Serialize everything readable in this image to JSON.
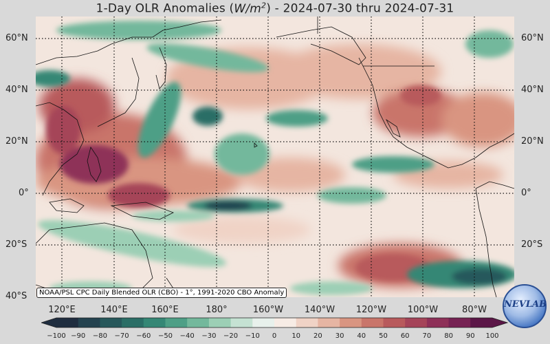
{
  "title": {
    "prefix": "1-Day OLR Anomalies (",
    "unit_main": "W/m",
    "unit_exp": "2",
    "suffix": ") - 2024-07-30 thru 2024-07-31"
  },
  "lat_labels": [
    "60°N",
    "40°N",
    "20°N",
    "0°",
    "20°S",
    "40°S"
  ],
  "lon_labels": [
    "120°E",
    "140°E",
    "160°E",
    "180°",
    "160°W",
    "140°W",
    "120°W",
    "100°W",
    "80°W"
  ],
  "footnote": "NOAA/PSL CPC Daily Blended OLR (CBO) - 1°, 1991-2020 CBO Anomaly",
  "colorbar": {
    "ticks": [
      "−100",
      "−90",
      "−80",
      "−70",
      "−60",
      "−50",
      "−40",
      "−30",
      "−20",
      "−10",
      "0",
      "10",
      "20",
      "30",
      "40",
      "50",
      "60",
      "70",
      "80",
      "90",
      "100"
    ],
    "colors": [
      "#1f2d3f",
      "#24424f",
      "#27585b",
      "#2b6e66",
      "#358775",
      "#4e9f86",
      "#73b89c",
      "#9ccfb5",
      "#c5e2d3",
      "#e8f1ec",
      "#f7ece5",
      "#f0d3c6",
      "#e6b5a3",
      "#d99581",
      "#c9756a",
      "#b85a5c",
      "#a54459",
      "#8e3058",
      "#762253",
      "#5b1647"
    ]
  },
  "logo": {
    "text": "NEVLAB",
    "icon": "noaa-lab-logo-icon"
  },
  "icons": {
    "lakes": "lake-outline-icon",
    "coast": "coastline-icon"
  }
}
